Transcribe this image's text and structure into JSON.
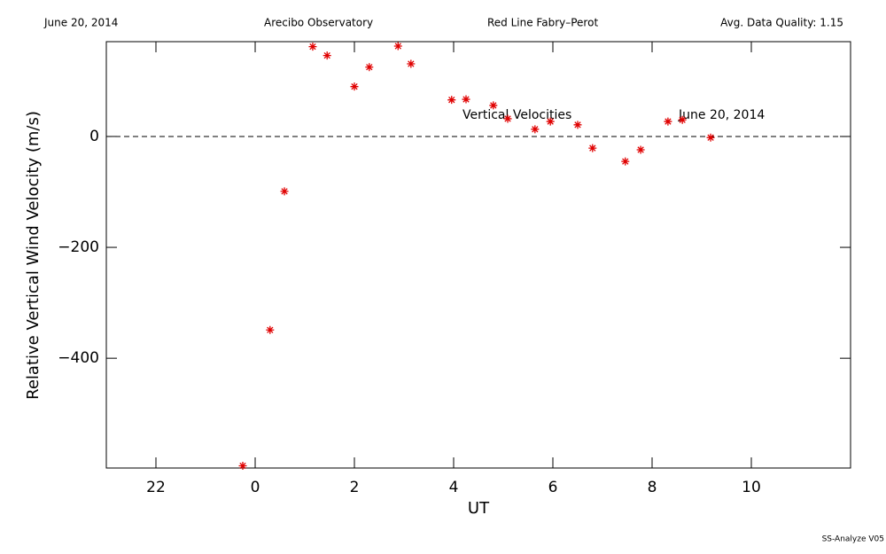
{
  "chart_data": {
    "type": "scatter",
    "header": [
      "June 20, 2014",
      "Arecibo Observatory",
      "Red Line Fabry–Perot",
      "Avg. Data Quality: 1.15"
    ],
    "xlabel": "UT",
    "ylabel": "Relative Vertical Wind Velocity (m/s)",
    "annotations": [
      "Vertical Velocities",
      "June 20, 2014"
    ],
    "footer": "SS-Analyze V05",
    "color": "#e00000",
    "xlim": [
      -3,
      12
    ],
    "ylim": [
      -598,
      171
    ],
    "xticks": [
      {
        "value": -2,
        "label": "22"
      },
      0,
      2,
      4,
      6,
      8,
      10
    ],
    "yticks": [
      0,
      {
        "value": -200,
        "label": "−200"
      },
      {
        "value": -400,
        "label": "−400"
      }
    ],
    "zero_line": "dashed",
    "x": [
      -0.25,
      0.3,
      0.59,
      1.16,
      1.45,
      2.0,
      2.3,
      2.88,
      3.14,
      3.96,
      4.25,
      4.8,
      5.09,
      5.64,
      5.95,
      6.5,
      6.8,
      7.46,
      7.77,
      8.32,
      8.61,
      9.18
    ],
    "values": [
      -594,
      -349,
      -99,
      162,
      146,
      90,
      125,
      163,
      131,
      66,
      67,
      56,
      32,
      13,
      27,
      21,
      -21,
      -45,
      -24,
      27,
      30,
      -2
    ]
  }
}
